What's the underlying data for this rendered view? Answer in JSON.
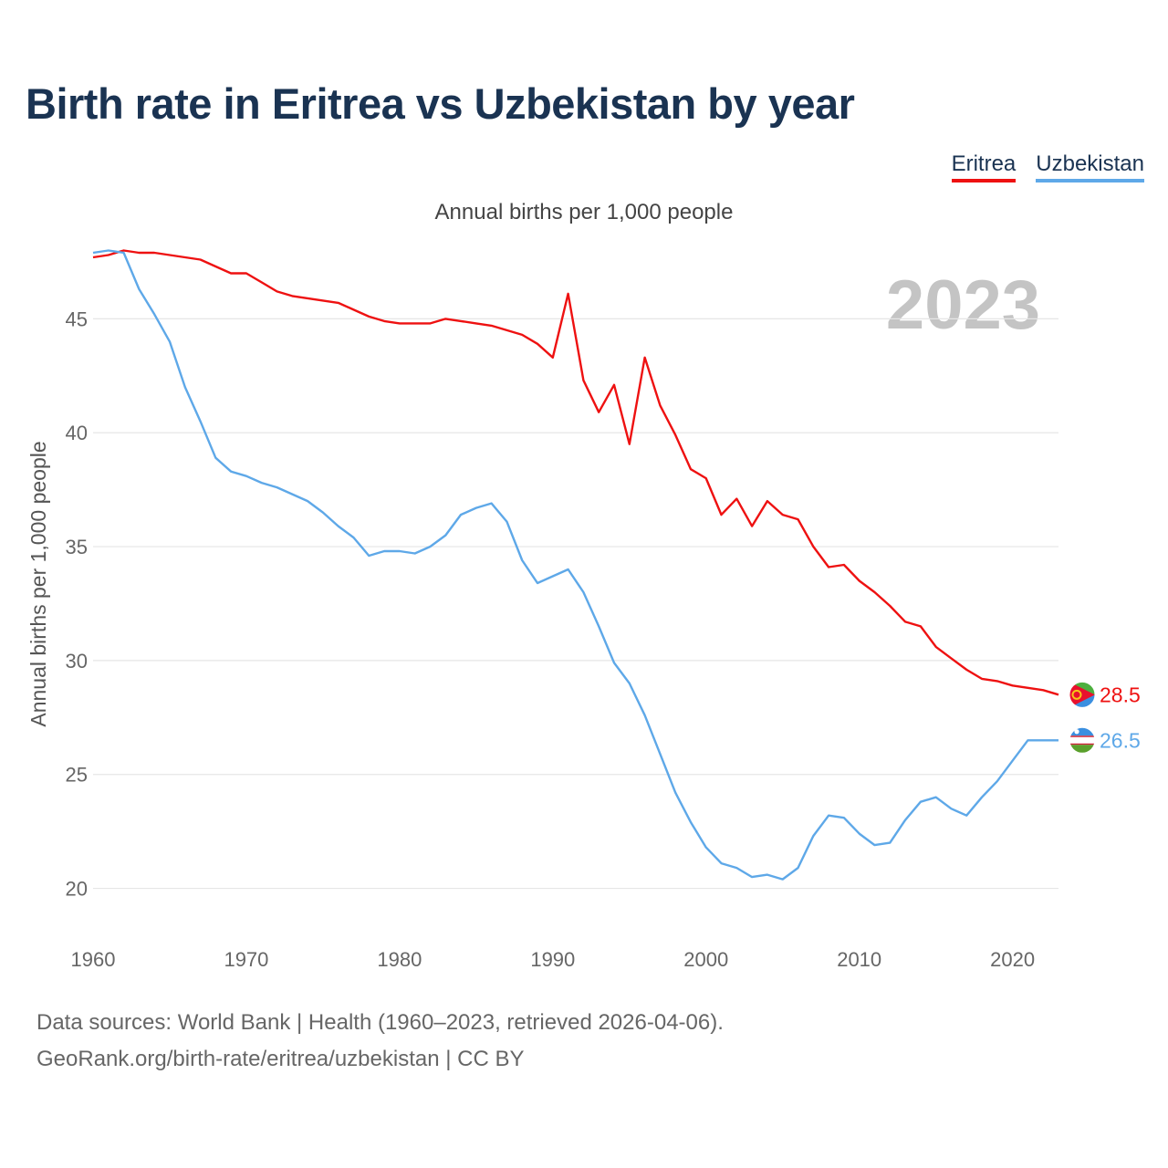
{
  "title": "Birth rate in Eritrea vs Uzbekistan by year",
  "legend": [
    {
      "label": "Eritrea",
      "color": "#ee1111"
    },
    {
      "label": "Uzbekistan",
      "color": "#5ea8e8"
    }
  ],
  "footer": {
    "line1": "Data sources: World Bank | Health (1960–2023, retrieved 2026-04-06).",
    "line2": "GeoRank.org/birth-rate/eritrea/uzbekistan | CC BY"
  },
  "chart_data": {
    "type": "line",
    "title": "Birth rate in Eritrea vs Uzbekistan by year",
    "subtitle": "Annual births per 1,000 people",
    "ylabel": "Annual births per 1,000 people",
    "xlabel": "",
    "year_label": "2023",
    "xlim": [
      1960,
      2023
    ],
    "ylim": [
      18.5,
      48.5
    ],
    "x_ticks": [
      1960,
      1970,
      1980,
      1990,
      2000,
      2010,
      2020
    ],
    "y_ticks": [
      20,
      25,
      30,
      35,
      40,
      45
    ],
    "grid": true,
    "x": [
      1960,
      1961,
      1962,
      1963,
      1964,
      1965,
      1966,
      1967,
      1968,
      1969,
      1970,
      1971,
      1972,
      1973,
      1974,
      1975,
      1976,
      1977,
      1978,
      1979,
      1980,
      1981,
      1982,
      1983,
      1984,
      1985,
      1986,
      1987,
      1988,
      1989,
      1990,
      1991,
      1992,
      1993,
      1994,
      1995,
      1996,
      1997,
      1998,
      1999,
      2000,
      2001,
      2002,
      2003,
      2004,
      2005,
      2006,
      2007,
      2008,
      2009,
      2010,
      2011,
      2012,
      2013,
      2014,
      2015,
      2016,
      2017,
      2018,
      2019,
      2020,
      2021,
      2022,
      2023
    ],
    "series": [
      {
        "name": "Eritrea",
        "color": "#ee1111",
        "end_label": "28.5",
        "flag_icon": "eritrea-flag-icon",
        "values": [
          47.7,
          47.8,
          48.0,
          47.9,
          47.9,
          47.8,
          47.7,
          47.6,
          47.3,
          47.0,
          47.0,
          46.6,
          46.2,
          46.0,
          45.9,
          45.8,
          45.7,
          45.4,
          45.1,
          44.9,
          44.8,
          44.8,
          44.8,
          45.0,
          44.9,
          44.8,
          44.7,
          44.5,
          44.3,
          43.9,
          43.3,
          46.1,
          42.3,
          40.9,
          42.1,
          39.5,
          43.3,
          41.2,
          39.9,
          38.4,
          38.0,
          36.4,
          37.1,
          35.9,
          37.0,
          36.4,
          36.2,
          35.0,
          34.1,
          34.2,
          33.5,
          33.0,
          32.4,
          31.7,
          31.5,
          30.6,
          30.1,
          29.6,
          29.2,
          29.1,
          28.9,
          28.8,
          28.7,
          28.5
        ]
      },
      {
        "name": "Uzbekistan",
        "color": "#5ea8e8",
        "end_label": "26.5",
        "flag_icon": "uzbekistan-flag-icon",
        "values": [
          47.9,
          48.0,
          47.9,
          46.3,
          45.2,
          44.0,
          42.0,
          40.5,
          38.9,
          38.3,
          38.1,
          37.8,
          37.6,
          37.3,
          37.0,
          36.5,
          35.9,
          35.4,
          34.6,
          34.8,
          34.8,
          34.7,
          35.0,
          35.5,
          36.4,
          36.7,
          36.9,
          36.1,
          34.4,
          33.4,
          33.7,
          34.0,
          33.0,
          31.5,
          29.9,
          29.0,
          27.6,
          25.9,
          24.2,
          22.9,
          21.8,
          21.1,
          20.9,
          20.5,
          20.6,
          20.4,
          20.9,
          22.3,
          23.2,
          23.1,
          22.4,
          21.9,
          22.0,
          23.0,
          23.8,
          24.0,
          23.5,
          23.2,
          24.0,
          24.7,
          25.6,
          26.5,
          26.5,
          26.5
        ]
      }
    ]
  }
}
